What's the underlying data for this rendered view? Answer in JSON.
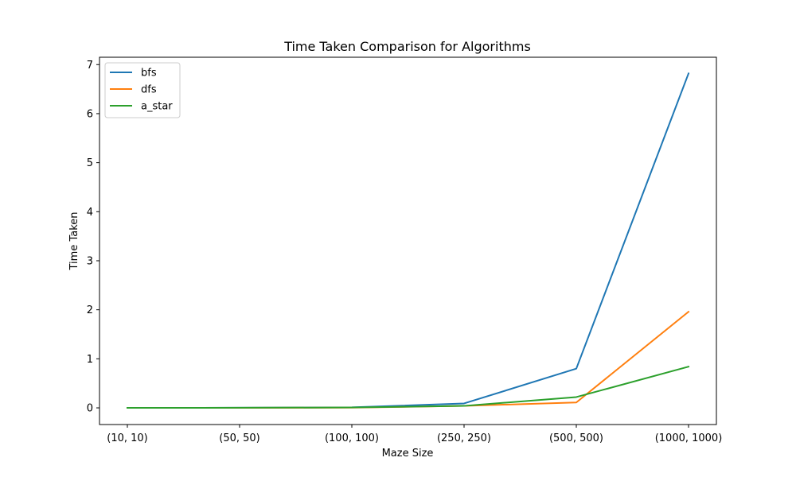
{
  "chart_data": {
    "type": "line",
    "title": "Time Taken Comparison for Algorithms",
    "xlabel": "Maze Size",
    "ylabel": "Time Taken",
    "categories": [
      "(10, 10)",
      "(50, 50)",
      "(100, 100)",
      "(250, 250)",
      "(500, 500)",
      "(1000, 1000)"
    ],
    "yticks": [
      0,
      1,
      2,
      3,
      4,
      5,
      6,
      7
    ],
    "ylim": [
      -0.34,
      7.15
    ],
    "grid": false,
    "legend": "top-left",
    "series": [
      {
        "name": "bfs",
        "color": "#1f77b4",
        "values": [
          0.0,
          0.002,
          0.01,
          0.09,
          0.8,
          6.82
        ]
      },
      {
        "name": "dfs",
        "color": "#ff7f0e",
        "values": [
          0.0,
          0.001,
          0.005,
          0.04,
          0.11,
          1.96
        ]
      },
      {
        "name": "a_star",
        "color": "#2ca02c",
        "values": [
          0.0,
          0.002,
          0.008,
          0.04,
          0.22,
          0.84
        ]
      }
    ]
  }
}
